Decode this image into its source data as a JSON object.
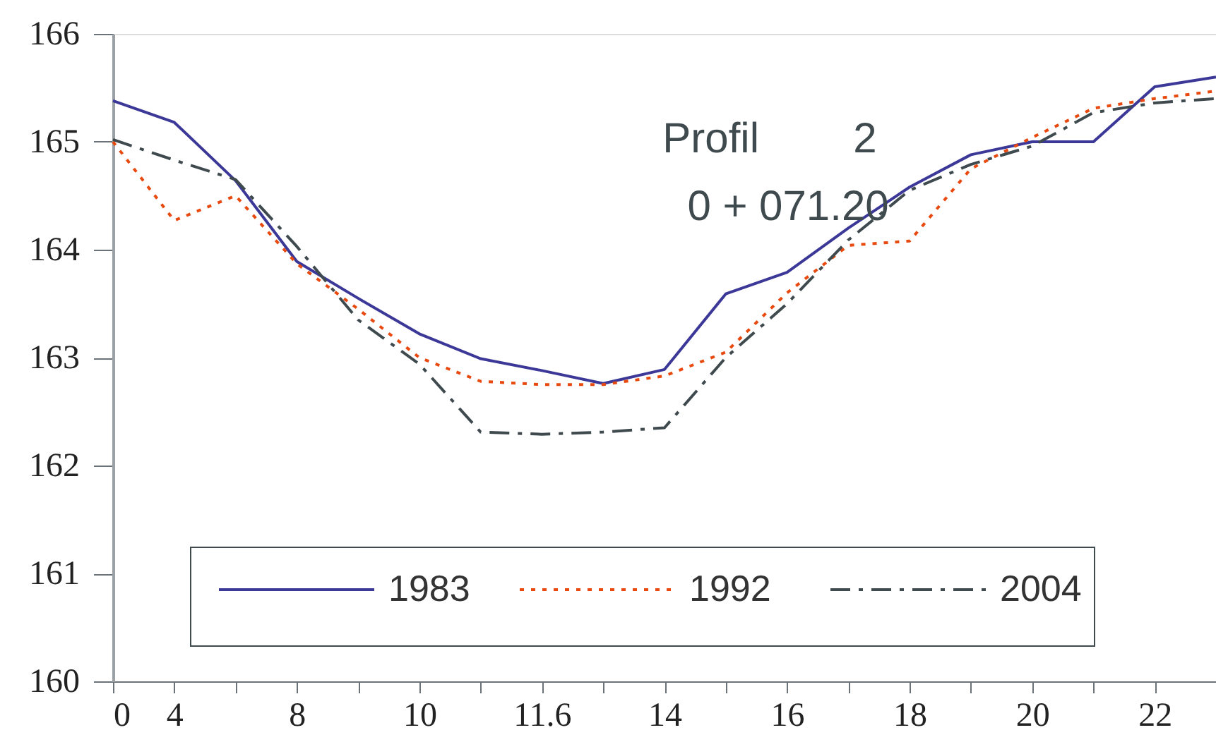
{
  "chart_data": {
    "type": "line",
    "categories": [
      "0",
      "4",
      null,
      "8",
      null,
      "10",
      null,
      "11.6",
      null,
      "14",
      null,
      "16",
      null,
      "18",
      null,
      "20",
      null,
      "22",
      null
    ],
    "series": [
      {
        "name": "1983",
        "color": "#3b3898",
        "line_style": "solid",
        "values": [
          165.38,
          165.18,
          164.64,
          163.89,
          163.55,
          163.22,
          162.99,
          162.88,
          162.76,
          162.89,
          163.59,
          163.79,
          164.2,
          164.58,
          164.88,
          165.0,
          165.0,
          165.51,
          165.6
        ]
      },
      {
        "name": "1992",
        "color": "#e8490f",
        "line_style": "dotted",
        "values": [
          165.0,
          164.27,
          164.5,
          163.87,
          163.45,
          163.0,
          162.78,
          162.75,
          162.75,
          162.83,
          163.05,
          163.6,
          164.04,
          164.08,
          164.75,
          165.04,
          165.31,
          165.4,
          165.47
        ]
      },
      {
        "name": "2004",
        "color": "#3f4a4f",
        "line_style": "dashdot",
        "values": [
          165.02,
          164.83,
          164.65,
          164.03,
          163.35,
          162.94,
          162.31,
          162.29,
          162.31,
          162.35,
          163.0,
          163.5,
          164.09,
          164.55,
          164.79,
          164.96,
          165.27,
          165.36,
          165.4
        ]
      }
    ],
    "ylim": [
      160,
      166
    ],
    "yticks": [
      160,
      161,
      162,
      163,
      164,
      165,
      166
    ],
    "grid": false,
    "legend": "bottom",
    "marker": "none",
    "annotations": [
      "Profil        2",
      "0 + 071.20"
    ]
  }
}
